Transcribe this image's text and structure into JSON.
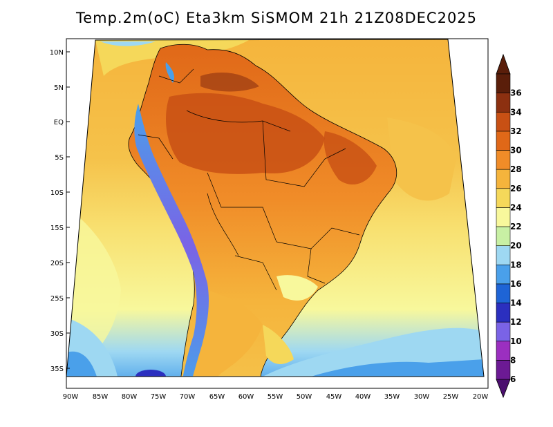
{
  "title": "Temp.2m(oC) Eta3km SiSMOM 21h 21Z08DEC2025",
  "lat_labels": [
    "10N",
    "5N",
    "EQ",
    "5S",
    "10S",
    "15S",
    "20S",
    "25S",
    "30S",
    "35S"
  ],
  "lon_labels": [
    "90W",
    "85W",
    "80W",
    "75W",
    "70W",
    "65W",
    "60W",
    "55W",
    "50W",
    "45W",
    "40W",
    "35W",
    "30W",
    "25W",
    "20W"
  ],
  "colorbar": {
    "labels": [
      "6",
      "8",
      "10",
      "12",
      "14",
      "16",
      "18",
      "20",
      "22",
      "24",
      "26",
      "28",
      "30",
      "32",
      "34",
      "36"
    ],
    "colors": [
      "#6c1a94",
      "#9b2fc0",
      "#7a63e6",
      "#2b2fbf",
      "#1e64d6",
      "#4aa0ea",
      "#9ed8f2",
      "#c8f0a4",
      "#f8f89c",
      "#f5d85a",
      "#f5b43c",
      "#f08c28",
      "#e06818",
      "#c85014",
      "#8c3010",
      "#5a1e0a"
    ],
    "under_color": "#4b0f6e",
    "over_color": "#5a1e0a"
  },
  "colors": {
    "ocean_north": "#f5b43c",
    "ocean_mid": "#f8e070",
    "ocean_south": "#9ed8f2",
    "land": "#e06818",
    "border": "#000000"
  }
}
